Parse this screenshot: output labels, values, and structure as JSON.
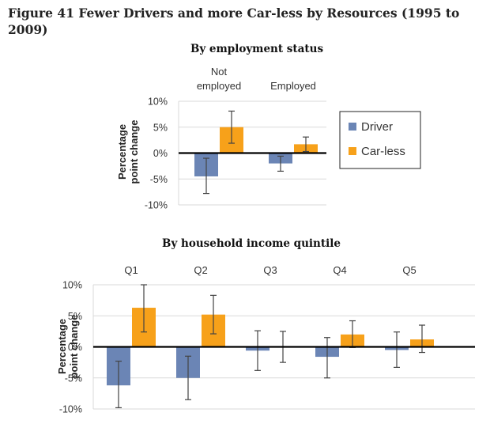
{
  "figure": {
    "title": "Figure 41 Fewer Drivers and more Car-less by Resources (1995 to 2009)"
  },
  "colors": {
    "driver": "#6b85b5",
    "carless": "#f7a11a",
    "axis": "#000000",
    "grid": "#d9d9d9",
    "errorbar": "#444444"
  },
  "chart_data": [
    {
      "type": "bar",
      "title": "By employment status",
      "ylabel": [
        "Percentage",
        "point change"
      ],
      "ylim": [
        -10,
        10
      ],
      "yticks": [
        "10%",
        "5%",
        "0%",
        "-5%",
        "-10%"
      ],
      "categories": [
        [
          "Not",
          "employed"
        ],
        [
          "Employed"
        ]
      ],
      "series": [
        {
          "name": "Driver",
          "values": [
            -4.5,
            -2.0
          ],
          "err_low": [
            -7.8,
            -3.5
          ],
          "err_high": [
            -1.0,
            -0.6
          ]
        },
        {
          "name": "Car-less",
          "values": [
            5.0,
            1.7
          ],
          "err_low": [
            1.9,
            0.3
          ],
          "err_high": [
            8.1,
            3.1
          ]
        }
      ],
      "legend": {
        "position": "right",
        "entries": [
          "Driver",
          "Car-less"
        ]
      },
      "grid": true
    },
    {
      "type": "bar",
      "title": "By household income quintile",
      "ylabel": [
        "Percentage",
        "point change"
      ],
      "ylim": [
        -10,
        10
      ],
      "yticks": [
        "10%",
        "5%",
        "0%",
        "-5%",
        "-10%"
      ],
      "categories": [
        [
          "Q1"
        ],
        [
          "Q2"
        ],
        [
          "Q3"
        ],
        [
          "Q4"
        ],
        [
          "Q5"
        ]
      ],
      "series": [
        {
          "name": "Driver",
          "values": [
            -6.2,
            -5.0,
            -0.6,
            -1.6,
            -0.5
          ],
          "err_low": [
            -9.8,
            -8.5,
            -3.8,
            -5.0,
            -3.3
          ],
          "err_high": [
            -2.3,
            -1.5,
            2.6,
            1.5,
            2.4
          ]
        },
        {
          "name": "Car-less",
          "values": [
            6.3,
            5.2,
            0.0,
            2.0,
            1.2
          ],
          "err_low": [
            2.4,
            2.1,
            -2.5,
            -0.1,
            -0.9
          ],
          "err_high": [
            10.0,
            8.3,
            2.5,
            4.2,
            3.5
          ]
        }
      ],
      "grid": true
    }
  ]
}
